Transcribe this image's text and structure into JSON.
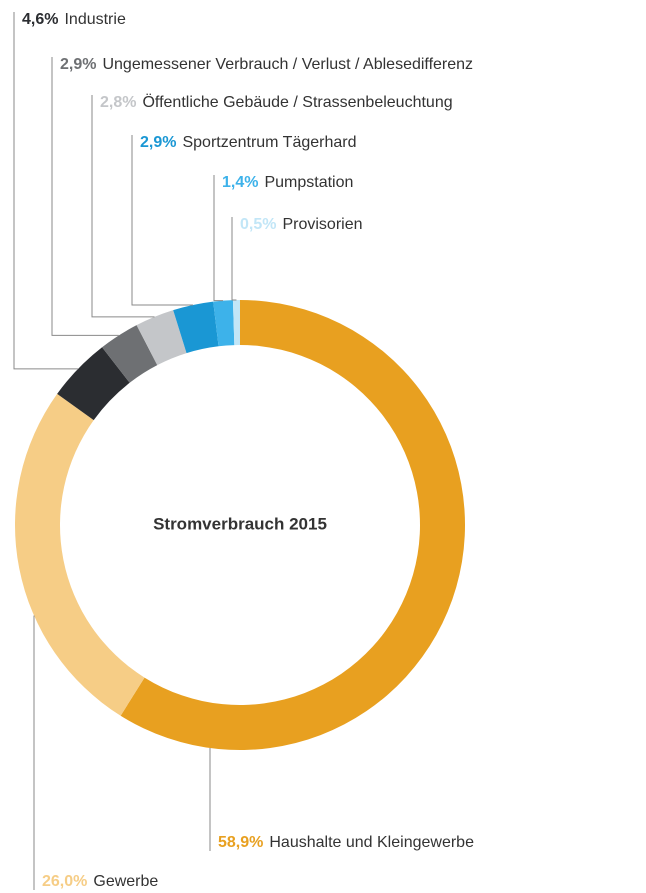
{
  "chart_data": {
    "type": "donut",
    "title": "Stromverbrauch 2015",
    "categories": [
      "Haushalte und Kleingewerbe",
      "Gewerbe",
      "Industrie",
      "Ungemessener Verbrauch / Verlust / Ablesedifferenz",
      "Öffentliche Gebäude / Strassenbeleuchtung",
      "Sportzentrum Tägerhard",
      "Pumpstation",
      "Provisorien"
    ],
    "values": [
      58.9,
      26.0,
      4.6,
      2.9,
      2.8,
      2.9,
      1.4,
      0.5
    ],
    "value_labels": [
      "58,9%",
      "26,0%",
      "4,6%",
      "2,9%",
      "2,8%",
      "2,9%",
      "1,4%",
      "0,5%"
    ],
    "colors": [
      "#e8a020",
      "#f6cd86",
      "#2b2d31",
      "#6e7073",
      "#c4c6c9",
      "#1a97d4",
      "#3db2ea",
      "#c2e6f7"
    ]
  }
}
